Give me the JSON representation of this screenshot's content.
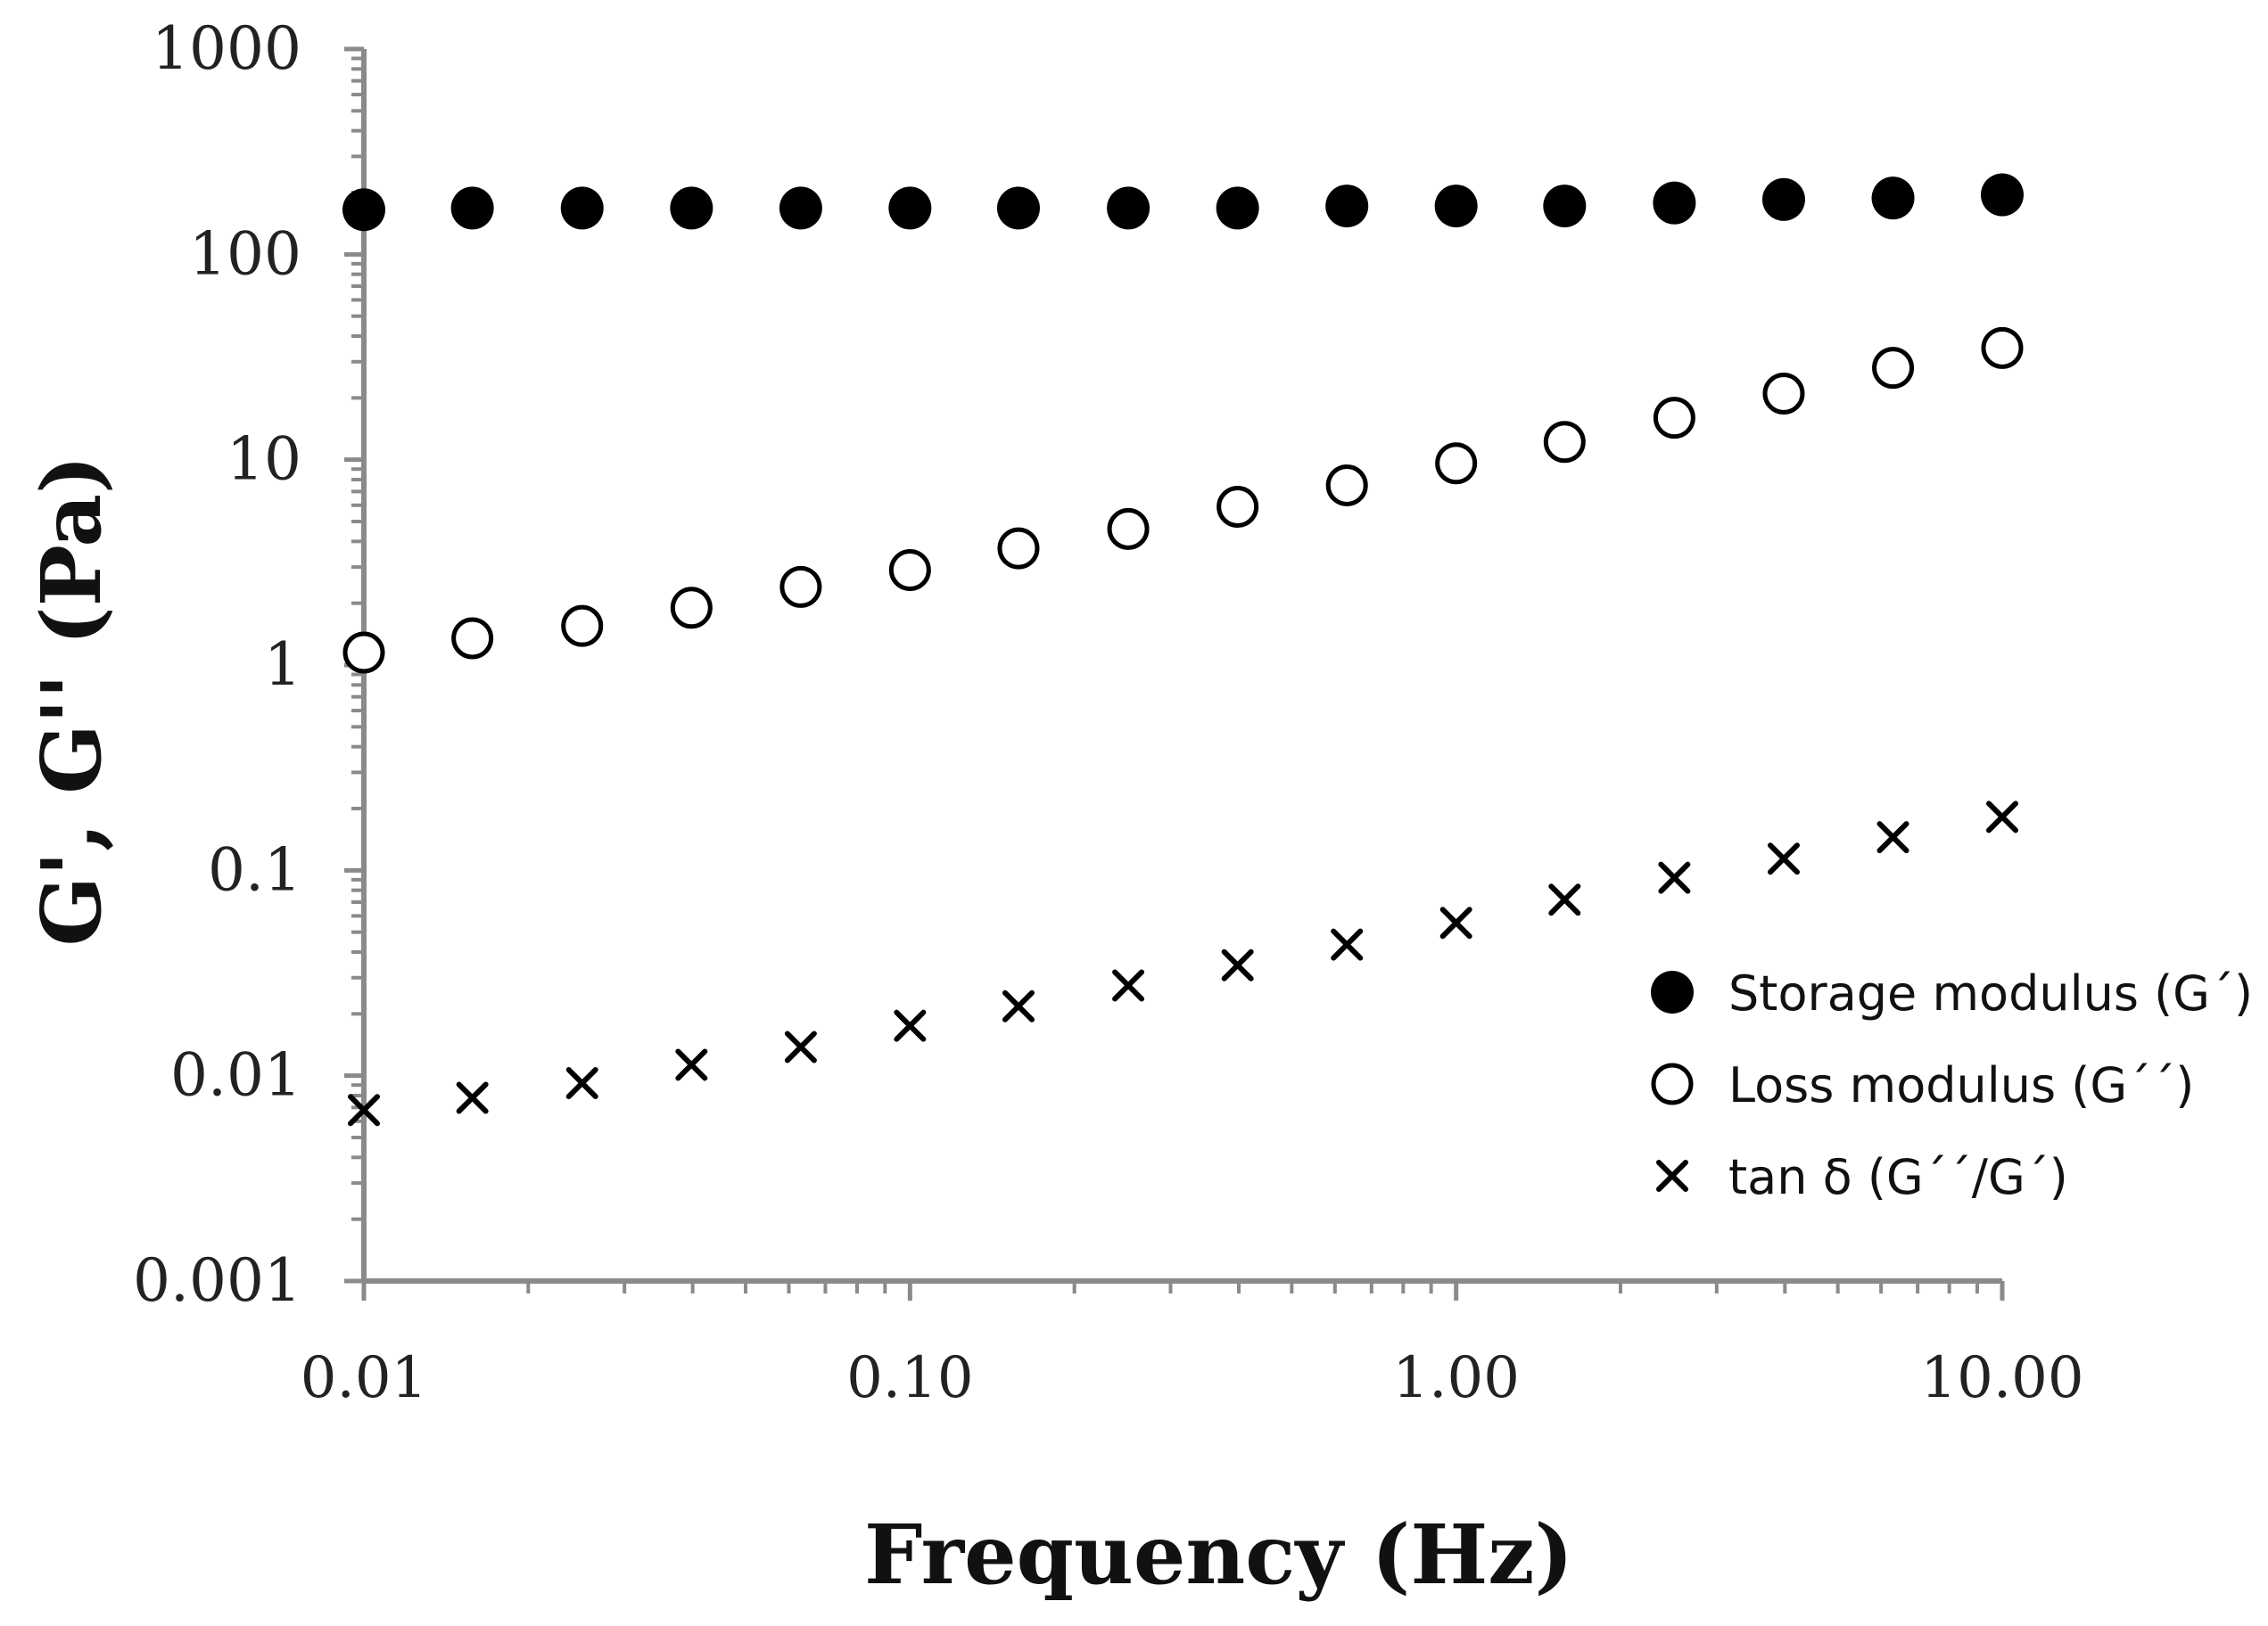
{
  "chart_data": {
    "type": "scatter",
    "title": "",
    "xlabel": "Frequency (Hz)",
    "ylabel": "G', G'' (Pa)",
    "x_scale": "log",
    "y_scale": "log",
    "xlim": [
      0.01,
      10
    ],
    "ylim": [
      0.001,
      1000
    ],
    "grid": false,
    "legend_position": "bottom-right",
    "x_tick_values": [
      0.01,
      0.1,
      1,
      10
    ],
    "x_tick_labels": [
      "0.01",
      "0.10",
      "1.00",
      "10.00"
    ],
    "y_tick_values": [
      0.001,
      0.01,
      0.1,
      1,
      10,
      100,
      1000
    ],
    "y_tick_labels": [
      "0.001",
      "0.01",
      "0.1",
      "1",
      "10",
      "100",
      "1000"
    ],
    "x": [
      0.01,
      0.0158,
      0.0251,
      0.0398,
      0.0631,
      0.1,
      0.158,
      0.251,
      0.398,
      0.631,
      1.0,
      1.58,
      2.51,
      3.98,
      6.31,
      10.0
    ],
    "series": [
      {
        "name": "Storage modulus (G´)",
        "marker": "filled-circle",
        "color": "#000000",
        "values": [
          165,
          168,
          168,
          168,
          168,
          168,
          168,
          168,
          168,
          172,
          172,
          172,
          178,
          185,
          188,
          195
        ]
      },
      {
        "name": "Loss modulus (G´´)",
        "marker": "open-circle",
        "color": "#000000",
        "values": [
          1.15,
          1.35,
          1.55,
          1.9,
          2.4,
          2.9,
          3.7,
          4.6,
          5.9,
          7.5,
          9.6,
          12.2,
          16.0,
          21.0,
          28.0,
          35.0
        ]
      },
      {
        "name": "tan δ (G´´/G´)",
        "marker": "cross",
        "color": "#000000",
        "values": [
          0.0068,
          0.0078,
          0.0092,
          0.0113,
          0.0138,
          0.0175,
          0.0218,
          0.0275,
          0.0345,
          0.0435,
          0.0555,
          0.072,
          0.092,
          0.114,
          0.145,
          0.182
        ]
      }
    ]
  }
}
